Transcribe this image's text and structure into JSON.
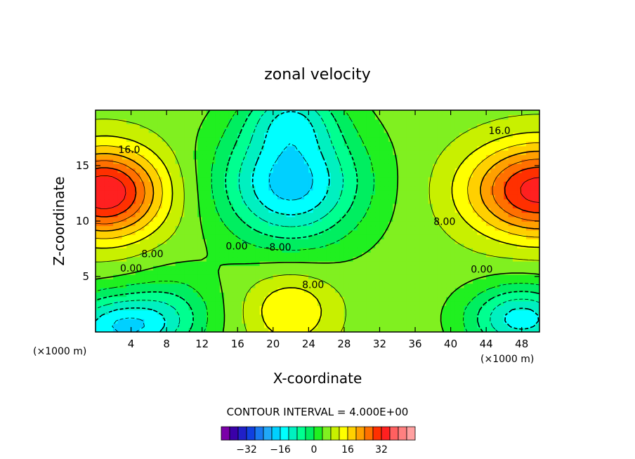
{
  "chart_data": {
    "type": "heatmap",
    "title": "zonal velocity",
    "xlabel": "X-coordinate",
    "ylabel": "Z-coordinate",
    "x_unit_left": "(×1000 m)",
    "x_unit_right": "(×1000 m)",
    "xlim": [
      0,
      50
    ],
    "ylim": [
      0,
      20
    ],
    "x_ticks": [
      4,
      8,
      12,
      16,
      20,
      24,
      28,
      32,
      36,
      40,
      44,
      48
    ],
    "y_ticks": [
      5,
      10,
      15
    ],
    "contour_interval_text": "CONTOUR INTERVAL = 4.000E+00",
    "contour_labels": [
      {
        "text": "16.0",
        "x": 3.8,
        "y": 16.4
      },
      {
        "text": "8.00",
        "x": 6.4,
        "y": 7.0
      },
      {
        "text": "0.00",
        "x": 4.0,
        "y": 5.7
      },
      {
        "text": "0.00",
        "x": 15.9,
        "y": 7.7
      },
      {
        "text": "-8.00",
        "x": 20.6,
        "y": 7.6
      },
      {
        "text": "8.00",
        "x": 24.5,
        "y": 4.2
      },
      {
        "text": "8.00",
        "x": 39.3,
        "y": 9.9
      },
      {
        "text": "16.0",
        "x": 45.5,
        "y": 18.1
      },
      {
        "text": "0.00",
        "x": 43.5,
        "y": 5.6
      }
    ],
    "colorbar": {
      "colors": [
        "#7a00a8",
        "#3a00a8",
        "#2020c8",
        "#1040e0",
        "#1878f0",
        "#20a8f8",
        "#00d0ff",
        "#00ffff",
        "#00f0c0",
        "#00ff90",
        "#00ee60",
        "#20f020",
        "#80f020",
        "#c8f000",
        "#ffff00",
        "#ffd000",
        "#ffa000",
        "#ff7000",
        "#ff3000",
        "#ff2020",
        "#ff6060",
        "#ff8080",
        "#ffa0a0"
      ],
      "tick_labels": [
        "-32",
        "-16",
        "0",
        "16",
        "32"
      ]
    }
  }
}
